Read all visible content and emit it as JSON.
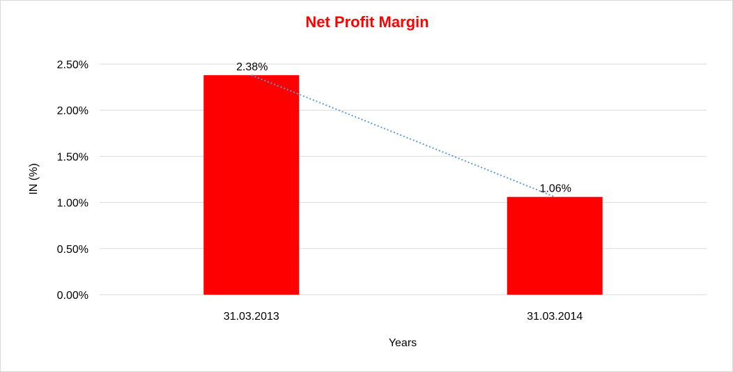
{
  "chart_data": {
    "type": "bar",
    "title": "Net Profit Margin",
    "xlabel": "Years",
    "ylabel": "IN (%)",
    "categories": [
      "31.03.2013",
      "31.03.2014"
    ],
    "values": [
      2.38,
      1.06
    ],
    "data_labels": [
      "2.38%",
      "1.06%"
    ],
    "ylim": [
      0,
      2.5
    ],
    "y_ticks": [
      0,
      0.5,
      1.0,
      1.5,
      2.0,
      2.5
    ],
    "y_tick_labels": [
      "0.00%",
      "0.50%",
      "1.00%",
      "1.50%",
      "2.00%",
      "2.50%"
    ],
    "grid": true,
    "legend": "none",
    "trendline": "linear",
    "colors": {
      "bar": "#ff0000",
      "title": "#ff0000",
      "trendline": "#5b9bd5",
      "grid": "#d9d9d9"
    }
  }
}
